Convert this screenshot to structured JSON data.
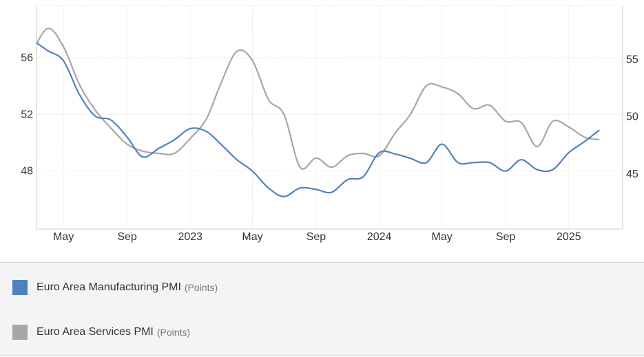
{
  "chart_data": {
    "type": "line",
    "grid": true,
    "x_range": [
      "2022-03-10",
      "2025-04-15"
    ],
    "x_ticks": [
      {
        "date": "2022-05-01",
        "label": "May"
      },
      {
        "date": "2022-09-01",
        "label": "Sep"
      },
      {
        "date": "2023-01-01",
        "label": "2023"
      },
      {
        "date": "2023-05-01",
        "label": "May"
      },
      {
        "date": "2023-09-01",
        "label": "Sep"
      },
      {
        "date": "2024-01-01",
        "label": "2024"
      },
      {
        "date": "2024-05-01",
        "label": "May"
      },
      {
        "date": "2024-09-01",
        "label": "Sep"
      },
      {
        "date": "2025-01-01",
        "label": "2025"
      }
    ],
    "left_axis": {
      "ylim": [
        43.9,
        59.7
      ],
      "ticks": [
        48,
        52,
        56
      ],
      "series": "Euro Area Manufacturing PMI"
    },
    "right_axis": {
      "ylim": [
        40.2,
        59.7
      ],
      "ticks": [
        45,
        50,
        55
      ],
      "series": "Euro Area Services PMI"
    },
    "series": [
      {
        "name": "Euro Area Manufacturing PMI",
        "unit": "(Points)",
        "color": "#4f81bd",
        "axis": "left",
        "points": [
          [
            "2022-03-01",
            57.3
          ],
          [
            "2022-04-01",
            56.5
          ],
          [
            "2022-05-01",
            55.8
          ],
          [
            "2022-06-01",
            53.4
          ],
          [
            "2022-07-01",
            51.9
          ],
          [
            "2022-08-01",
            51.6
          ],
          [
            "2022-09-01",
            50.4
          ],
          [
            "2022-10-01",
            49.0
          ],
          [
            "2022-11-01",
            49.6
          ],
          [
            "2022-12-01",
            50.2
          ],
          [
            "2023-01-01",
            51.0
          ],
          [
            "2023-02-01",
            50.8
          ],
          [
            "2023-03-01",
            49.9
          ],
          [
            "2023-04-01",
            48.8
          ],
          [
            "2023-05-01",
            48.0
          ],
          [
            "2023-06-01",
            46.8
          ],
          [
            "2023-07-01",
            46.2
          ],
          [
            "2023-08-01",
            46.8
          ],
          [
            "2023-09-01",
            46.7
          ],
          [
            "2023-10-01",
            46.5
          ],
          [
            "2023-11-01",
            47.4
          ],
          [
            "2023-12-01",
            47.6
          ],
          [
            "2024-01-01",
            49.3
          ],
          [
            "2024-02-01",
            49.2
          ],
          [
            "2024-03-01",
            48.9
          ],
          [
            "2024-04-01",
            48.6
          ],
          [
            "2024-05-01",
            49.9
          ],
          [
            "2024-06-01",
            48.6
          ],
          [
            "2024-07-01",
            48.6
          ],
          [
            "2024-08-01",
            48.6
          ],
          [
            "2024-09-01",
            48.0
          ],
          [
            "2024-10-01",
            48.8
          ],
          [
            "2024-11-01",
            48.1
          ],
          [
            "2024-12-01",
            48.1
          ],
          [
            "2025-01-01",
            49.3
          ],
          [
            "2025-02-01",
            50.1
          ],
          [
            "2025-03-01",
            50.9
          ]
        ]
      },
      {
        "name": "Euro Area Services PMI",
        "unit": "(Points)",
        "color": "#a6a6a6",
        "axis": "right",
        "points": [
          [
            "2022-03-01",
            55.6
          ],
          [
            "2022-04-01",
            57.7
          ],
          [
            "2022-05-01",
            56.1
          ],
          [
            "2022-06-01",
            52.8
          ],
          [
            "2022-07-01",
            50.6
          ],
          [
            "2022-08-01",
            49.0
          ],
          [
            "2022-09-01",
            47.6
          ],
          [
            "2022-10-01",
            47.0
          ],
          [
            "2022-11-01",
            46.8
          ],
          [
            "2022-12-01",
            46.8
          ],
          [
            "2023-01-01",
            48.1
          ],
          [
            "2023-02-01",
            49.8
          ],
          [
            "2023-03-01",
            52.9
          ],
          [
            "2023-04-01",
            55.7
          ],
          [
            "2023-05-01",
            54.9
          ],
          [
            "2023-06-01",
            51.5
          ],
          [
            "2023-07-01",
            50.2
          ],
          [
            "2023-08-01",
            45.6
          ],
          [
            "2023-09-01",
            46.4
          ],
          [
            "2023-10-01",
            45.6
          ],
          [
            "2023-11-01",
            46.6
          ],
          [
            "2023-12-01",
            46.8
          ],
          [
            "2024-01-01",
            46.6
          ],
          [
            "2024-02-01",
            48.6
          ],
          [
            "2024-03-01",
            50.2
          ],
          [
            "2024-04-01",
            52.7
          ],
          [
            "2024-05-01",
            52.6
          ],
          [
            "2024-06-01",
            52.0
          ],
          [
            "2024-07-01",
            50.7
          ],
          [
            "2024-08-01",
            51.0
          ],
          [
            "2024-09-01",
            49.6
          ],
          [
            "2024-10-01",
            49.5
          ],
          [
            "2024-11-01",
            47.4
          ],
          [
            "2024-12-01",
            49.6
          ],
          [
            "2025-01-01",
            49.1
          ],
          [
            "2025-02-01",
            48.2
          ],
          [
            "2025-03-01",
            48.0
          ]
        ]
      }
    ]
  },
  "legend": {
    "items": [
      {
        "name": "Euro Area Manufacturing PMI",
        "unit": "(Points)",
        "color": "#4f81bd"
      },
      {
        "name": "Euro Area Services PMI",
        "unit": "(Points)",
        "color": "#a6a6a6"
      }
    ]
  }
}
